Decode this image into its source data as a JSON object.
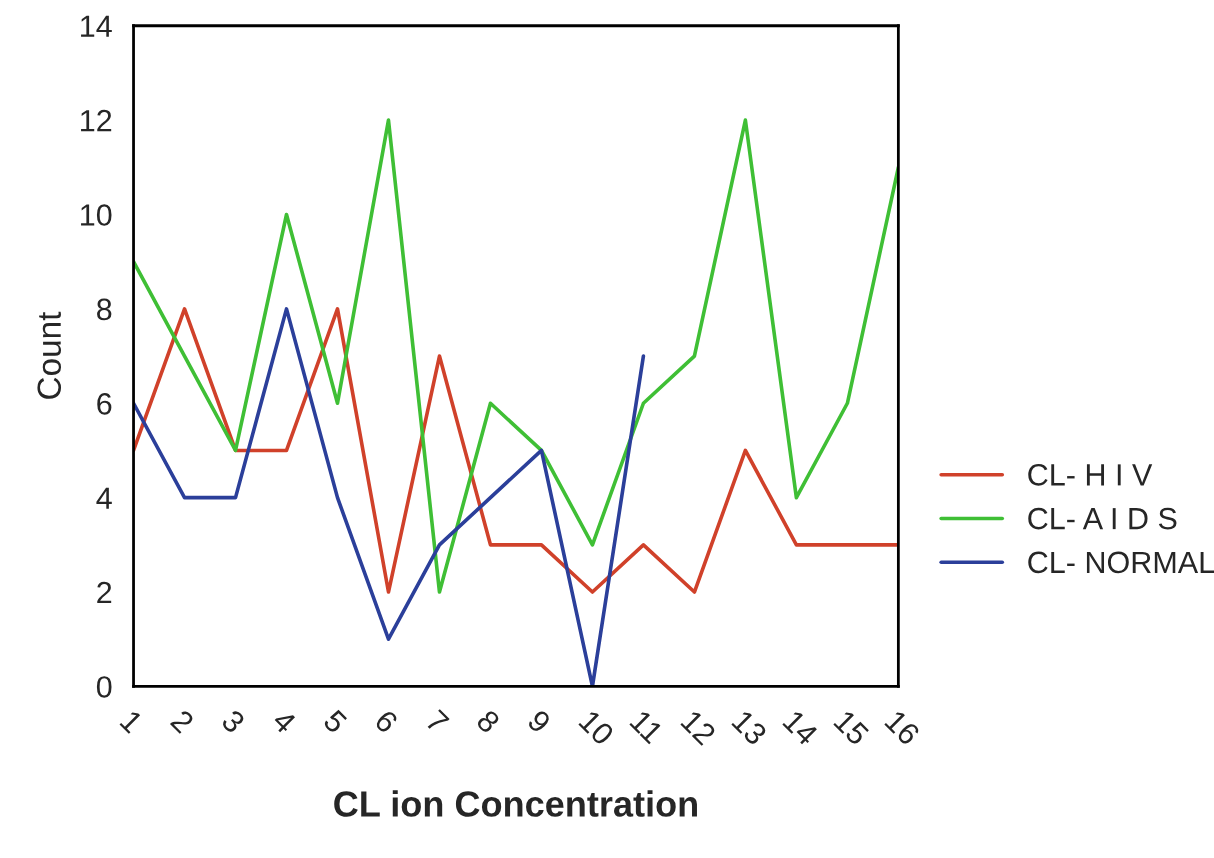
{
  "chart_data": {
    "type": "line",
    "xlabel": "CL ion Concentration",
    "ylabel": "Count",
    "categories": [
      "1",
      "2",
      "3",
      "4",
      "5",
      "6",
      "7",
      "8",
      "9",
      "10",
      "11",
      "12",
      "13",
      "14",
      "15",
      "16"
    ],
    "series": [
      {
        "name": "CL- H I V",
        "color": "#d0412a",
        "values": [
          5,
          8,
          5,
          5,
          8,
          2,
          7,
          3,
          3,
          2,
          3,
          2,
          5,
          3,
          3,
          3
        ]
      },
      {
        "name": "CL- A I D S",
        "color": "#3fbf35",
        "values": [
          9,
          7,
          5,
          10,
          6,
          12,
          2,
          6,
          5,
          3,
          6,
          7,
          12,
          4,
          6,
          11
        ]
      },
      {
        "name": "CL- NORMAL",
        "color": "#2b3f9a",
        "values": [
          6,
          4,
          4,
          8,
          4,
          1,
          3,
          4,
          5,
          0,
          7,
          null,
          null,
          null,
          null,
          null
        ]
      }
    ],
    "ylim": [
      0,
      14
    ],
    "yticks": [
      0,
      2,
      4,
      6,
      8,
      10,
      12,
      14
    ],
    "grid": false,
    "legend": "right",
    "marker": "none",
    "line_style": "solid"
  }
}
